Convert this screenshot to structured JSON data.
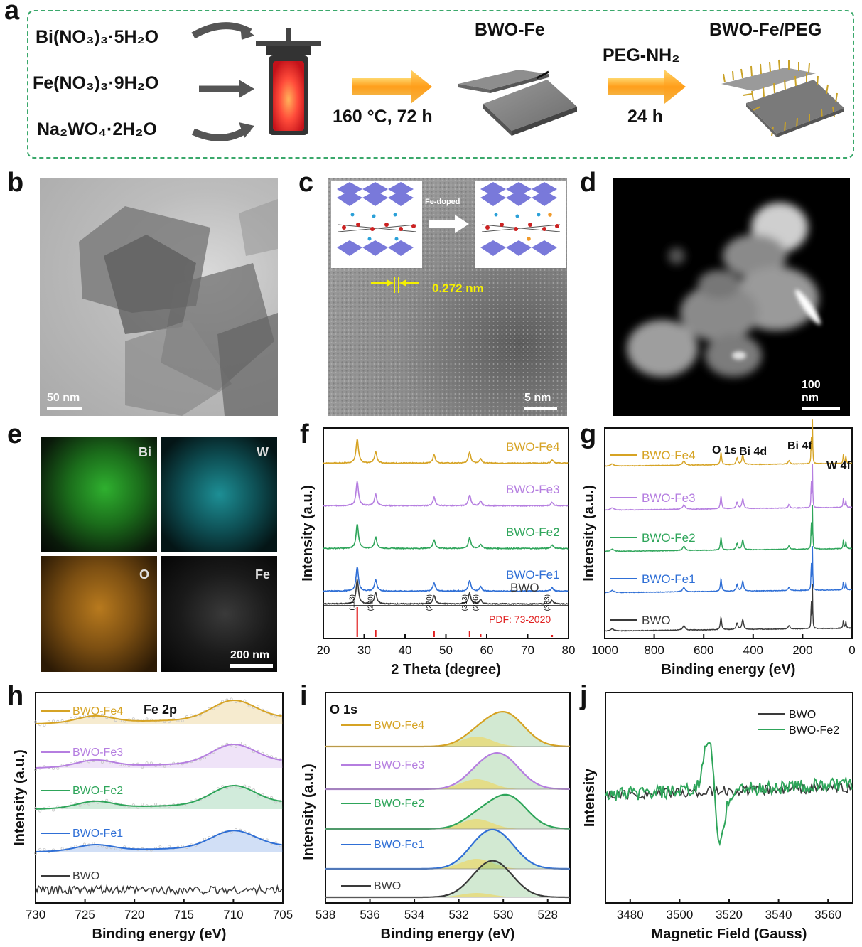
{
  "panel_letters": [
    "a",
    "b",
    "c",
    "d",
    "e",
    "f",
    "g",
    "h",
    "i",
    "j"
  ],
  "scheme": {
    "reagents": [
      "Bi(NO₃)₃·5H₂O",
      "Fe(NO₃)₃·9H₂O",
      "Na₂WO₄·2H₂O"
    ],
    "step1_condition": "160 °C, 72 h",
    "product1": "BWO-Fe",
    "step2_reagent": "PEG-NH₂",
    "step2_condition": "24 h",
    "product2": "BWO-Fe/PEG"
  },
  "micrographs": {
    "b_scale": "50 nm",
    "c_scale": "5 nm",
    "c_lattice": "0.272 nm",
    "c_inset_arrow": "Fe-doped",
    "d_scale": "100 nm",
    "e_maps": [
      "Bi",
      "W",
      "O",
      "Fe"
    ],
    "e_scale": "200 nm"
  },
  "colors": {
    "BWO": "#3a3a3a",
    "BWO-Fe1": "#2f6fd6",
    "BWO-Fe2": "#2ea55a",
    "BWO-Fe3": "#b57ee0",
    "BWO-Fe4": "#d6a324",
    "pdf": "#e02020"
  },
  "chart_data": [
    {
      "panel": "f",
      "type": "line",
      "xlabel": "2 Theta (degree)",
      "ylabel": "Intensity (a.u.)",
      "xlim": [
        20,
        80
      ],
      "xticks": [
        20,
        30,
        40,
        50,
        60,
        70,
        80
      ],
      "series": [
        {
          "name": "BWO-Fe4"
        },
        {
          "name": "BWO-Fe3"
        },
        {
          "name": "BWO-Fe2"
        },
        {
          "name": "BWO-Fe1"
        },
        {
          "name": "BWO"
        }
      ],
      "peaks": [
        {
          "x": 28.3,
          "label": "(113)"
        },
        {
          "x": 32.8,
          "label": "(200)"
        },
        {
          "x": 47.1,
          "label": "(220)"
        },
        {
          "x": 55.8,
          "label": "(313)"
        },
        {
          "x": 58.5,
          "label": "(226)"
        },
        {
          "x": 76.0,
          "label": "(333)"
        }
      ],
      "reference": {
        "label": "PDF: 73-2020",
        "x": [
          28.3,
          32.8,
          47.1,
          55.8,
          58.5,
          76.0
        ]
      }
    },
    {
      "panel": "g",
      "type": "line",
      "xlabel": "Binding energy (eV)",
      "ylabel": "Intensity (a.u.)",
      "xlim": [
        1000,
        0
      ],
      "xticks": [
        1000,
        800,
        600,
        400,
        200,
        0
      ],
      "series": [
        {
          "name": "BWO-Fe4"
        },
        {
          "name": "BWO-Fe3"
        },
        {
          "name": "BWO-Fe2"
        },
        {
          "name": "BWO-Fe1"
        },
        {
          "name": "BWO"
        }
      ],
      "annotations": [
        {
          "label": "O 1s",
          "x": 530
        },
        {
          "label": "Bi 4d",
          "x": 442
        },
        {
          "label": "Bi 4f",
          "x": 159
        },
        {
          "label": "W 4f",
          "x": 35
        }
      ]
    },
    {
      "panel": "h",
      "type": "line",
      "title": "Fe 2p",
      "xlabel": "Binding energy (eV)",
      "ylabel": "Intensity (a.u.)",
      "xlim": [
        730,
        705
      ],
      "xticks": [
        730,
        725,
        720,
        715,
        710,
        705
      ],
      "series": [
        {
          "name": "BWO-Fe4"
        },
        {
          "name": "BWO-Fe3"
        },
        {
          "name": "BWO-Fe2"
        },
        {
          "name": "BWO-Fe1"
        },
        {
          "name": "BWO"
        }
      ],
      "fe_peaks_ev": [
        710,
        724
      ]
    },
    {
      "panel": "i",
      "type": "line",
      "title": "O 1s",
      "xlabel": "Binding energy (eV)",
      "xlim": [
        538,
        527
      ],
      "xticks": [
        538,
        536,
        534,
        532,
        530,
        528
      ],
      "series": [
        {
          "name": "BWO-Fe4"
        },
        {
          "name": "BWO-Fe3"
        },
        {
          "name": "BWO-Fe2"
        },
        {
          "name": "BWO-Fe1"
        },
        {
          "name": "BWO"
        }
      ]
    },
    {
      "panel": "j",
      "type": "line",
      "xlabel": "Magnetic Field (Gauss)",
      "ylabel": "Intensity",
      "xlim": [
        3470,
        3570
      ],
      "xticks": [
        3480,
        3500,
        3520,
        3540,
        3560
      ],
      "series": [
        {
          "name": "BWO"
        },
        {
          "name": "BWO-Fe2"
        }
      ],
      "signal_center": 3514
    }
  ]
}
